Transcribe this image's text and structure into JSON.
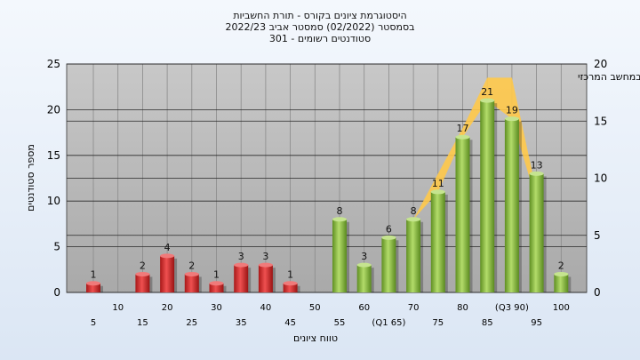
{
  "titles": {
    "line1": "היסטוגרמת ציונים בקורס - תורת החשביות",
    "line2": "בסמסטר  (02/2022)  סמסטר אביב 2022/23",
    "line3": "סטודנטים רשומים - 301"
  },
  "chart_data": {
    "type": "bar",
    "subtitle": "במשימה : ציון סופי במערכת האקדמית במחשב המרכזי",
    "xlabel": "טווח ציונים",
    "ylabel": "מספר סטודנטים",
    "ylim": [
      0,
      25
    ],
    "y2lim": [
      0,
      20
    ],
    "yticks": [
      0,
      5,
      10,
      15,
      20,
      25
    ],
    "y2ticks": [
      0,
      5,
      10,
      15,
      20
    ],
    "grid": true,
    "categories": [
      "5",
      "10",
      "15",
      "20",
      "25",
      "30",
      "35",
      "40",
      "45",
      "50",
      "55",
      "60",
      "(Q1 65)",
      "70",
      "75",
      "80",
      "85",
      "(Q3 90)",
      "95",
      "100"
    ],
    "values": [
      1,
      0,
      2,
      4,
      2,
      1,
      3,
      3,
      1,
      0,
      8,
      3,
      6,
      8,
      11,
      17,
      21,
      19,
      13,
      2
    ],
    "data_labels": [
      "1",
      "",
      "2",
      "4",
      "2",
      "1",
      "3",
      "3",
      "1",
      "",
      "8",
      "3",
      "6",
      "8",
      "11",
      "17",
      "21",
      "19",
      "13",
      "2"
    ],
    "fail_color": "#d93a3a",
    "pass_color": "#8cbf45",
    "band_color": "#ffc94a",
    "band": [
      {
        "x": "(Q1 65)",
        "low": 6,
        "high": 6
      },
      {
        "x": "70",
        "low": 8,
        "high": 8
      },
      {
        "x": "75",
        "low": 11,
        "high": 13
      },
      {
        "x": "80",
        "low": 17,
        "high": 18
      },
      {
        "x": "85",
        "low": 21,
        "high": 23.5
      },
      {
        "x": "(Q3 90)",
        "low": 19,
        "high": 23.5
      },
      {
        "x": "95",
        "low": 10,
        "high": 11
      }
    ]
  }
}
